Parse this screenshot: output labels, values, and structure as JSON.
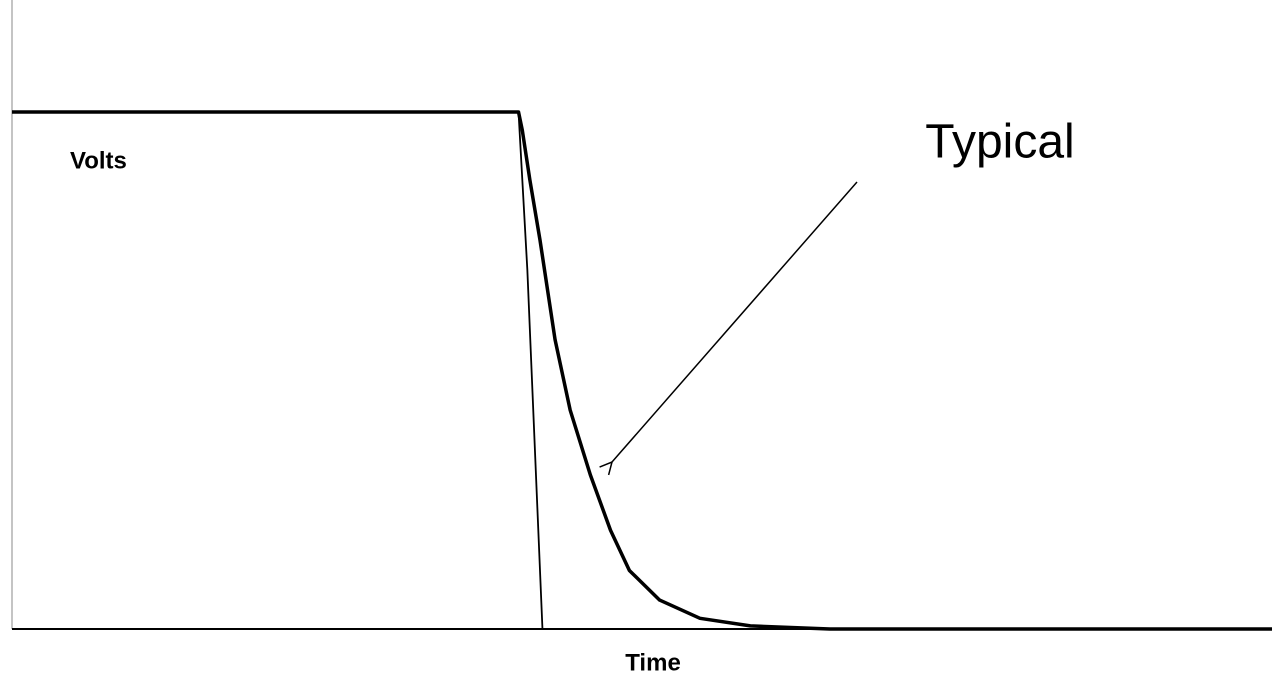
{
  "chart_data": {
    "type": "line",
    "x_label": "Time",
    "y_label": "Volts",
    "annotation": "Typical",
    "xlim": [
      0,
      100
    ],
    "ylim": [
      0,
      100
    ],
    "series": [
      {
        "color": "#000000",
        "x": [
          0,
          40.2,
          40.5,
          41.1,
          41.9,
          43.1,
          44.3,
          45.9,
          47.5,
          49.0,
          51.4,
          54.6,
          58.6,
          64.9,
          100
        ],
        "values": [
          82.2,
          82.2,
          79.3,
          71.4,
          61.9,
          46.0,
          34.8,
          24.5,
          15.7,
          9.3,
          4.6,
          1.7,
          0.5,
          0,
          0
        ]
      },
      {
        "color": "#000000",
        "x": [
          40.2,
          40.9,
          42.1
        ],
        "values": [
          82.2,
          57.1,
          0
        ]
      }
    ]
  }
}
